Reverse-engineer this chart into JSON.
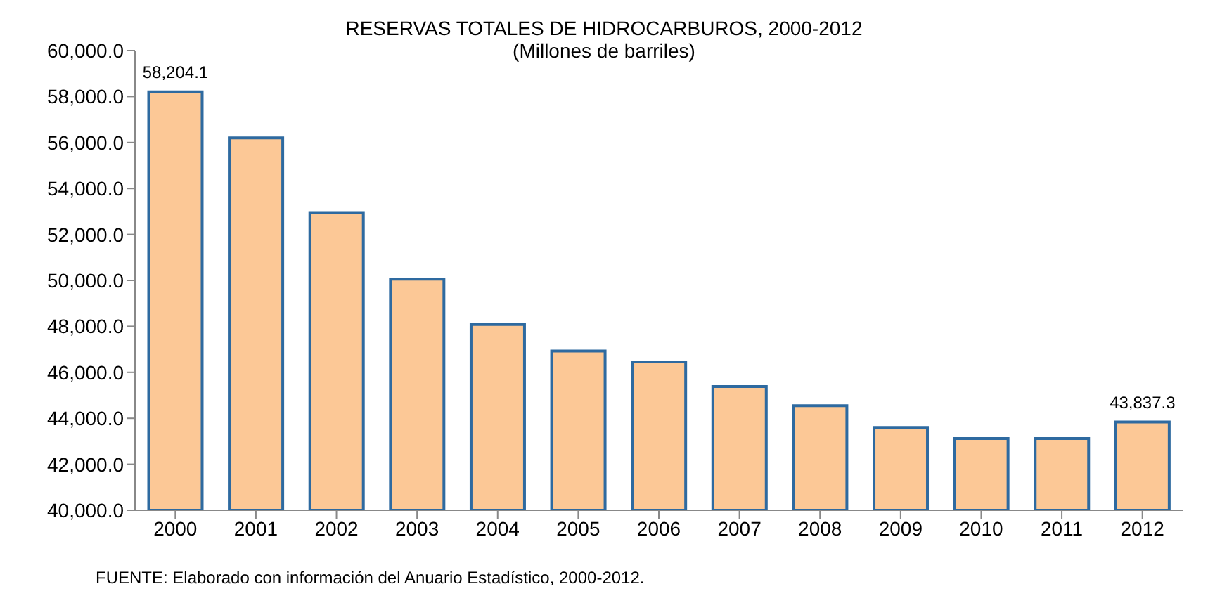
{
  "chart_data": {
    "type": "bar",
    "title": "RESERVAS TOTALES DE HIDROCARBUROS, 2000-2012",
    "subtitle": "(Millones de barriles)",
    "categories": [
      "2000",
      "2001",
      "2002",
      "2003",
      "2004",
      "2005",
      "2006",
      "2007",
      "2008",
      "2009",
      "2010",
      "2011",
      "2012"
    ],
    "values": [
      58204.1,
      56200,
      52950,
      50050,
      48080,
      46930,
      46450,
      45380,
      44550,
      43600,
      43120,
      43120,
      43837.3
    ],
    "value_labels": [
      "58,204.1",
      null,
      null,
      null,
      null,
      null,
      null,
      null,
      null,
      null,
      null,
      null,
      "43,837.3"
    ],
    "color": "#fcc896",
    "ylim": [
      40000,
      60000
    ],
    "yticks": [
      {
        "value": 40000,
        "label": "40,000.0"
      },
      {
        "value": 42000,
        "label": "42,000.0"
      },
      {
        "value": 44000,
        "label": "44,000.0"
      },
      {
        "value": 46000,
        "label": "46,000.0"
      },
      {
        "value": 48000,
        "label": "48,000.0"
      },
      {
        "value": 50000,
        "label": "50,000.0"
      },
      {
        "value": 52000,
        "label": "52,000.0"
      },
      {
        "value": 54000,
        "label": "54,000.0"
      },
      {
        "value": 56000,
        "label": "56,000.0"
      },
      {
        "value": 58000,
        "label": "58,000.0"
      },
      {
        "value": 60000,
        "label": "60,000.0"
      }
    ],
    "grid": false,
    "annotations": [
      "FUENTE: Elaborado con información del Anuario Estadístico, 2000-2012."
    ]
  }
}
